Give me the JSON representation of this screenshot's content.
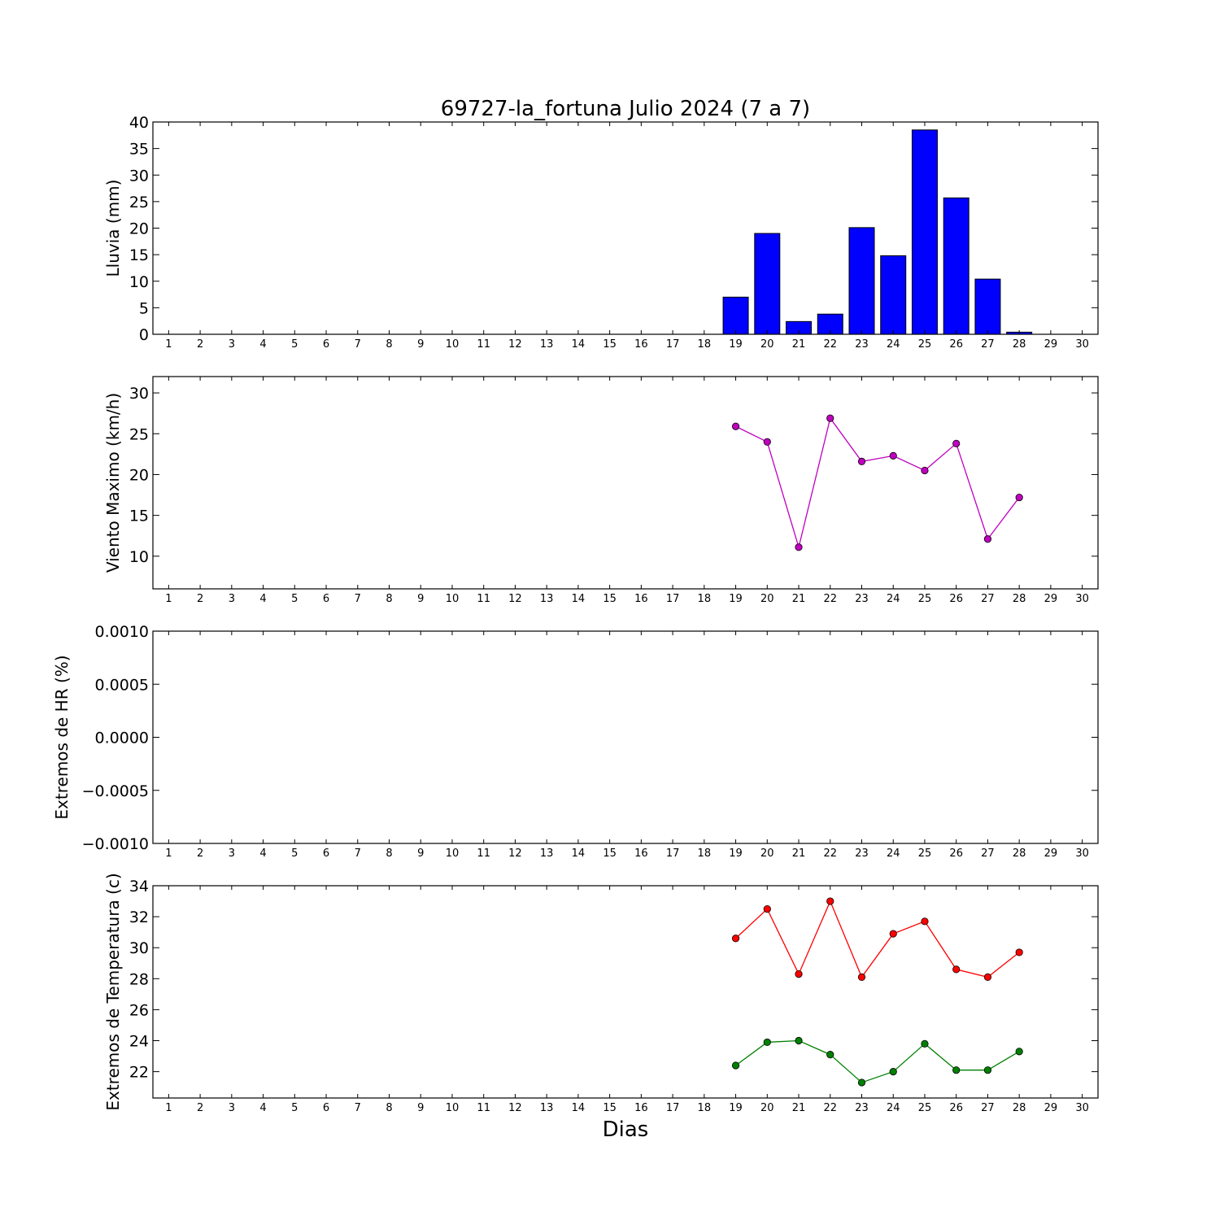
{
  "figure": {
    "title": "69727-la_fortuna Julio 2024  (7 a 7)",
    "xlabel": "Dias"
  },
  "chart_data": [
    {
      "type": "bar",
      "ylabel": "Lluvia (mm)",
      "xlim": [
        0.5,
        30.5
      ],
      "ylim": [
        0,
        40
      ],
      "yticks": [
        "0",
        "5",
        "10",
        "15",
        "20",
        "25",
        "30",
        "35",
        "40"
      ],
      "ytick_values": [
        0,
        5,
        10,
        15,
        20,
        25,
        30,
        35,
        40
      ],
      "xticks": [
        1,
        2,
        3,
        4,
        5,
        6,
        7,
        8,
        9,
        10,
        11,
        12,
        13,
        14,
        15,
        16,
        17,
        18,
        19,
        20,
        21,
        22,
        23,
        24,
        25,
        26,
        27,
        28,
        29,
        30
      ],
      "x": [
        19,
        20,
        21,
        22,
        23,
        24,
        25,
        26,
        27,
        28
      ],
      "values": [
        7.0,
        19.0,
        2.4,
        3.8,
        20.1,
        14.8,
        38.5,
        25.7,
        10.4,
        0.4
      ],
      "color": "#0000ff"
    },
    {
      "type": "line",
      "ylabel": "Viento Maximo (km/h)",
      "xlim": [
        0.5,
        30.5
      ],
      "ylim": [
        6,
        32
      ],
      "yticks": [
        "10",
        "15",
        "20",
        "25",
        "30"
      ],
      "ytick_values": [
        10,
        15,
        20,
        25,
        30
      ],
      "xticks": [
        1,
        2,
        3,
        4,
        5,
        6,
        7,
        8,
        9,
        10,
        11,
        12,
        13,
        14,
        15,
        16,
        17,
        18,
        19,
        20,
        21,
        22,
        23,
        24,
        25,
        26,
        27,
        28,
        29,
        30
      ],
      "series": [
        {
          "x": [
            19,
            20,
            21,
            22,
            23,
            24,
            25,
            26,
            27,
            28
          ],
          "values": [
            25.9,
            24.0,
            11.1,
            26.9,
            21.6,
            22.3,
            20.5,
            23.8,
            12.1,
            17.2
          ],
          "color": "#bf00bf"
        }
      ]
    },
    {
      "type": "line",
      "ylabel": "Extremos de HR (%)",
      "xlim": [
        0.5,
        30.5
      ],
      "ylim": [
        -0.001,
        0.001
      ],
      "yticks": [
        "−0.0010",
        "−0.0005",
        "0.0000",
        "0.0005",
        "0.0010"
      ],
      "ytick_values": [
        -0.001,
        -0.0005,
        0,
        0.0005,
        0.001
      ],
      "xticks": [
        1,
        2,
        3,
        4,
        5,
        6,
        7,
        8,
        9,
        10,
        11,
        12,
        13,
        14,
        15,
        16,
        17,
        18,
        19,
        20,
        21,
        22,
        23,
        24,
        25,
        26,
        27,
        28,
        29,
        30
      ],
      "series": []
    },
    {
      "type": "line",
      "ylabel": "Extremos de Temperatura (c)",
      "xlim": [
        0.5,
        30.5
      ],
      "ylim": [
        20.3,
        34
      ],
      "yticks": [
        "22",
        "24",
        "26",
        "28",
        "30",
        "32",
        "34"
      ],
      "ytick_values": [
        22,
        24,
        26,
        28,
        30,
        32,
        34
      ],
      "xticks": [
        1,
        2,
        3,
        4,
        5,
        6,
        7,
        8,
        9,
        10,
        11,
        12,
        13,
        14,
        15,
        16,
        17,
        18,
        19,
        20,
        21,
        22,
        23,
        24,
        25,
        26,
        27,
        28,
        29,
        30
      ],
      "series": [
        {
          "x": [
            19,
            20,
            21,
            22,
            23,
            24,
            25,
            26,
            27,
            28
          ],
          "values": [
            30.6,
            32.5,
            28.3,
            33.0,
            28.1,
            30.9,
            31.7,
            28.6,
            28.1,
            29.7
          ],
          "color": "#ff0000"
        },
        {
          "x": [
            19,
            20,
            21,
            22,
            23,
            24,
            25,
            26,
            27,
            28
          ],
          "values": [
            22.4,
            23.9,
            24.0,
            23.1,
            21.3,
            22.0,
            23.8,
            22.1,
            22.1,
            23.3
          ],
          "color": "#008000"
        }
      ]
    }
  ]
}
